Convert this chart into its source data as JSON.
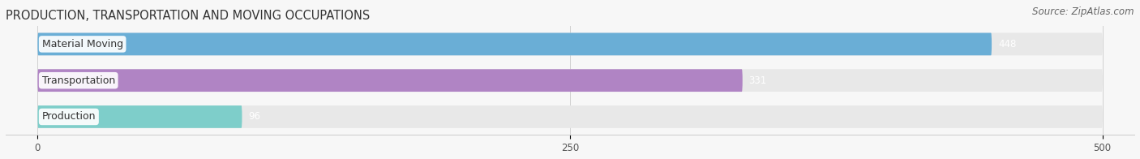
{
  "title": "PRODUCTION, TRANSPORTATION AND MOVING OCCUPATIONS",
  "source": "Source: ZipAtlas.com",
  "categories": [
    "Material Moving",
    "Transportation",
    "Production"
  ],
  "values": [
    448,
    331,
    96
  ],
  "bar_colors": [
    "#6aaed6",
    "#b084c4",
    "#7ececa"
  ],
  "bar_bg_color": "#e8e8e8",
  "background_color": "#f7f7f7",
  "xlim": [
    -15,
    515
  ],
  "xmin": 0,
  "xmax": 500,
  "xticks": [
    0,
    250,
    500
  ],
  "title_fontsize": 10.5,
  "label_fontsize": 9,
  "value_fontsize": 8.5,
  "source_fontsize": 8.5
}
